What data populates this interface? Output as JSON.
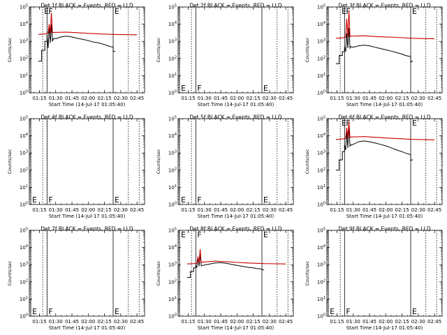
{
  "figure": {
    "ylabel": "Counts/sec",
    "xlabel": "Start Time (14-Jul-17 01:05:40)",
    "colors": {
      "events": "#000000",
      "lld": "#cc0000"
    }
  },
  "chart_data": [
    {
      "id": "det1",
      "title": "Det 1f BLACK = Events, RED = LLD",
      "type": "line",
      "ylog": true,
      "xlim": [
        "01:05:40",
        "02:52:00"
      ],
      "ylim": [
        1,
        100000
      ],
      "xticks": [
        "01:15",
        "01:30",
        "01:45",
        "02:00",
        "02:15",
        "02:30",
        "02:45"
      ],
      "yticks": [
        "10^0",
        "10^1",
        "10^2",
        "10^3",
        "10^4",
        "10^5"
      ],
      "markers": [
        {
          "label": "E",
          "x": "01:18"
        },
        {
          "label": "F",
          "x": "01:22"
        },
        {
          "label": "E",
          "x": "02:23"
        }
      ],
      "has_data": true,
      "series": [
        {
          "name": "Events",
          "color": "#000000",
          "x": [
            "01:14",
            "01:17",
            "01:17",
            "01:20",
            "01:20",
            "01:22",
            "01:22",
            "01:23",
            "01:24",
            "01:25",
            "01:26",
            "01:27",
            "01:28",
            "01:30",
            "01:35",
            "01:40",
            "01:45",
            "01:50",
            "01:55",
            "02:00",
            "02:05",
            "02:10",
            "02:15",
            "02:18",
            "02:23",
            "02:23",
            "02:24",
            "02:25"
          ],
          "y": [
            70,
            70,
            300,
            300,
            1000,
            1000,
            2500,
            400,
            7000,
            800,
            10000,
            1000,
            1500,
            1400,
            1800,
            2000,
            1800,
            1500,
            1300,
            1100,
            900,
            800,
            650,
            550,
            450,
            250,
            260,
            260
          ]
        },
        {
          "name": "LLD",
          "color": "#cc0000",
          "x": [
            "01:14",
            "01:20",
            "01:23",
            "01:24",
            "01:25",
            "01:26",
            "01:27",
            "01:28",
            "01:40",
            "01:50",
            "02:00",
            "02:10",
            "02:25",
            "02:45"
          ],
          "y": [
            2500,
            2700,
            3000,
            10000,
            3000,
            45000,
            3200,
            3300,
            3400,
            3200,
            2900,
            2700,
            2500,
            2400
          ]
        }
      ]
    },
    {
      "id": "det2",
      "title": "Det 2f BLACK = Events, RED = LLD",
      "type": "line",
      "ylog": true,
      "xlim": [
        "01:05:40",
        "02:52:00"
      ],
      "ylim": [
        1,
        100000
      ],
      "xticks": [
        "01:15",
        "01:30",
        "01:45",
        "02:00",
        "02:15",
        "02:30",
        "02:45"
      ],
      "yticks": [
        "10^0",
        "10^1",
        "10^2",
        "10^3",
        "10^4",
        "10^5"
      ],
      "markers": [
        {
          "label": "E",
          "x": "01:07"
        },
        {
          "label": "F",
          "x": "01:22"
        },
        {
          "label": "E",
          "x": "02:23"
        }
      ],
      "has_data": false,
      "series": []
    },
    {
      "id": "det3",
      "title": "Det 3f BLACK = Events, RED = LLD",
      "type": "line",
      "ylog": true,
      "xlim": [
        "01:05:40",
        "02:52:00"
      ],
      "ylim": [
        1,
        100000
      ],
      "xticks": [
        "01:15",
        "01:30",
        "01:45",
        "02:00",
        "02:15",
        "02:30",
        "02:45"
      ],
      "yticks": [
        "10^0",
        "10^1",
        "10^2",
        "10^3",
        "10^4",
        "10^5"
      ],
      "markers": [
        {
          "label": "E",
          "x": "01:18"
        },
        {
          "label": "F",
          "x": "01:22"
        },
        {
          "label": "E",
          "x": "02:23"
        }
      ],
      "has_data": true,
      "series": [
        {
          "name": "Events",
          "color": "#000000",
          "x": [
            "01:14",
            "01:17",
            "01:17",
            "01:20",
            "01:20",
            "01:22",
            "01:22",
            "01:23",
            "01:24",
            "01:25",
            "01:26",
            "01:27",
            "01:28",
            "01:30",
            "01:35",
            "01:40",
            "01:45",
            "01:50",
            "01:55",
            "02:00",
            "02:05",
            "02:10",
            "02:15",
            "02:18",
            "02:23",
            "02:23",
            "02:24",
            "02:25"
          ],
          "y": [
            50,
            50,
            150,
            150,
            250,
            250,
            500,
            250,
            3000,
            400,
            6000,
            400,
            500,
            450,
            550,
            600,
            550,
            450,
            380,
            320,
            270,
            220,
            180,
            150,
            130,
            60,
            70,
            70
          ]
        },
        {
          "name": "LLD",
          "color": "#cc0000",
          "x": [
            "01:14",
            "01:20",
            "01:23",
            "01:24",
            "01:25",
            "01:26",
            "01:27",
            "01:28",
            "01:40",
            "01:50",
            "02:00",
            "02:10",
            "02:25",
            "02:45"
          ],
          "y": [
            1500,
            1600,
            1700,
            20000,
            1800,
            60000,
            1900,
            2000,
            2100,
            1900,
            1800,
            1700,
            1500,
            1400
          ]
        }
      ]
    },
    {
      "id": "det4",
      "title": "Det 4f BLACK = Events, RED = LLD",
      "type": "line",
      "ylog": true,
      "xlim": [
        "01:05:40",
        "02:52:00"
      ],
      "ylim": [
        1,
        100000
      ],
      "xticks": [
        "01:15",
        "01:30",
        "01:45",
        "02:00",
        "02:15",
        "02:30",
        "02:45"
      ],
      "yticks": [
        "10^0",
        "10^1",
        "10^2",
        "10^3",
        "10^4",
        "10^5"
      ],
      "markers": [
        {
          "label": "E",
          "x": "01:07"
        },
        {
          "label": "F",
          "x": "01:22"
        },
        {
          "label": "E",
          "x": "02:23"
        }
      ],
      "has_data": false,
      "series": []
    },
    {
      "id": "det5",
      "title": "Det 5f BLACK = Events, RED = LLD",
      "type": "line",
      "ylog": true,
      "xlim": [
        "01:05:40",
        "02:52:00"
      ],
      "ylim": [
        1,
        100000
      ],
      "xticks": [
        "01:15",
        "01:30",
        "01:45",
        "02:00",
        "02:15",
        "02:30",
        "02:45"
      ],
      "yticks": [
        "10^0",
        "10^1",
        "10^2",
        "10^3",
        "10^4",
        "10^5"
      ],
      "markers": [
        {
          "label": "E",
          "x": "01:07"
        },
        {
          "label": "F",
          "x": "01:22"
        },
        {
          "label": "E",
          "x": "02:23"
        }
      ],
      "has_data": false,
      "series": []
    },
    {
      "id": "det6",
      "title": "Det 6f BLACK = Events, RED = LLD",
      "type": "line",
      "ylog": true,
      "xlim": [
        "01:05:40",
        "02:52:00"
      ],
      "ylim": [
        1,
        100000
      ],
      "xticks": [
        "01:15",
        "01:30",
        "01:45",
        "02:00",
        "02:15",
        "02:30",
        "02:45"
      ],
      "yticks": [
        "10^0",
        "10^1",
        "10^2",
        "10^3",
        "10^4",
        "10^5"
      ],
      "markers": [
        {
          "label": "E",
          "x": "01:18"
        },
        {
          "label": "F",
          "x": "01:22"
        },
        {
          "label": "E",
          "x": "02:23"
        }
      ],
      "has_data": true,
      "series": [
        {
          "name": "Events",
          "color": "#000000",
          "x": [
            "01:14",
            "01:17",
            "01:17",
            "01:20",
            "01:20",
            "01:22",
            "01:22",
            "01:23",
            "01:24",
            "01:25",
            "01:26",
            "01:27",
            "01:28",
            "01:30",
            "01:35",
            "01:40",
            "01:45",
            "01:50",
            "01:55",
            "02:00",
            "02:05",
            "02:10",
            "02:15",
            "02:18",
            "02:23",
            "02:23",
            "02:24",
            "02:25"
          ],
          "y": [
            100,
            100,
            400,
            400,
            1200,
            1200,
            3000,
            1500,
            20000,
            2000,
            40000,
            2500,
            3000,
            3200,
            4500,
            5000,
            4500,
            3800,
            3200,
            2600,
            2000,
            1500,
            1200,
            1000,
            800,
            350,
            400,
            400
          ]
        },
        {
          "name": "LLD",
          "color": "#cc0000",
          "x": [
            "01:14",
            "01:20",
            "01:23",
            "01:24",
            "01:25",
            "01:26",
            "01:27",
            "01:28",
            "01:40",
            "01:50",
            "02:00",
            "02:10",
            "02:25",
            "02:45"
          ],
          "y": [
            6000,
            6500,
            7000,
            30000,
            7500,
            70000,
            8000,
            8500,
            9000,
            8200,
            7500,
            7000,
            6200,
            5800
          ]
        }
      ]
    },
    {
      "id": "det7",
      "title": "Det 7f BLACK = Events, RED = LLD",
      "type": "line",
      "ylog": true,
      "xlim": [
        "01:05:40",
        "02:52:00"
      ],
      "ylim": [
        1,
        100000
      ],
      "xticks": [
        "01:15",
        "01:30",
        "01:45",
        "02:00",
        "02:15",
        "02:30",
        "02:45"
      ],
      "yticks": [
        "10^0",
        "10^1",
        "10^2",
        "10^3",
        "10^4",
        "10^5"
      ],
      "markers": [
        {
          "label": "E",
          "x": "01:07"
        },
        {
          "label": "F",
          "x": "01:22"
        },
        {
          "label": "E",
          "x": "02:23"
        }
      ],
      "has_data": false,
      "series": []
    },
    {
      "id": "det8",
      "title": "Det 8f BLACK = Events, RED = LLD",
      "type": "line",
      "ylog": true,
      "xlim": [
        "01:05:40",
        "02:52:00"
      ],
      "ylim": [
        1,
        100000
      ],
      "xticks": [
        "01:15",
        "01:30",
        "01:45",
        "02:00",
        "02:15",
        "02:30",
        "02:45"
      ],
      "yticks": [
        "10^0",
        "10^1",
        "10^2",
        "10^3",
        "10^4",
        "10^5"
      ],
      "markers": [
        {
          "label": "E",
          "x": "01:07"
        },
        {
          "label": "F",
          "x": "01:22"
        },
        {
          "label": "E",
          "x": "02:23"
        }
      ],
      "has_data": true,
      "series": [
        {
          "name": "Events",
          "color": "#000000",
          "x": [
            "01:14",
            "01:17",
            "01:17",
            "01:20",
            "01:20",
            "01:22",
            "01:22",
            "01:23",
            "01:24",
            "01:25",
            "01:26",
            "01:27",
            "01:28",
            "01:30",
            "01:35",
            "01:40",
            "01:45",
            "01:50",
            "01:55",
            "02:00",
            "02:05",
            "02:10",
            "02:15",
            "02:18",
            "02:23",
            "02:23",
            "02:24",
            "02:25"
          ],
          "y": [
            180,
            180,
            400,
            400,
            650,
            650,
            900,
            700,
            2500,
            800,
            4000,
            850,
            900,
            950,
            1100,
            1250,
            1300,
            1200,
            1050,
            900,
            800,
            700,
            650,
            600,
            560,
            500,
            500,
            500
          ]
        },
        {
          "name": "LLD",
          "color": "#cc0000",
          "x": [
            "01:14",
            "01:20",
            "01:23",
            "01:24",
            "01:25",
            "01:26",
            "01:27",
            "01:28",
            "01:40",
            "01:50",
            "02:00",
            "02:10",
            "02:25",
            "02:45"
          ],
          "y": [
            1100,
            1150,
            1200,
            3000,
            1250,
            8000,
            1300,
            1400,
            1600,
            1500,
            1350,
            1250,
            1150,
            1100
          ]
        }
      ]
    },
    {
      "id": "det9",
      "title": "Det 9f BLACK = Events, RED = LLD",
      "type": "line",
      "ylog": true,
      "xlim": [
        "01:05:40",
        "02:52:00"
      ],
      "ylim": [
        1,
        100000
      ],
      "xticks": [
        "01:15",
        "01:30",
        "01:45",
        "02:00",
        "02:15",
        "02:30",
        "02:45"
      ],
      "yticks": [
        "10^0",
        "10^1",
        "10^2",
        "10^3",
        "10^4",
        "10^5"
      ],
      "markers": [
        {
          "label": "E",
          "x": "01:07"
        },
        {
          "label": "F",
          "x": "01:22"
        },
        {
          "label": "E",
          "x": "02:23"
        }
      ],
      "has_data": false,
      "series": []
    }
  ]
}
